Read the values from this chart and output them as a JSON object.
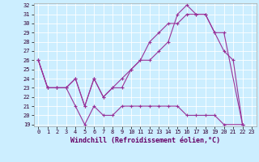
{
  "xlabel": "Windchill (Refroidissement éolien,°C)",
  "bg_color": "#cceeff",
  "line_color": "#993399",
  "xlim_min": -0.5,
  "xlim_max": 23.5,
  "ylim_min": 18.8,
  "ylim_max": 32.2,
  "yticks": [
    19,
    20,
    21,
    22,
    23,
    24,
    25,
    26,
    27,
    28,
    29,
    30,
    31,
    32
  ],
  "xticks": [
    0,
    1,
    2,
    3,
    4,
    5,
    6,
    7,
    8,
    9,
    10,
    11,
    12,
    13,
    14,
    15,
    16,
    17,
    18,
    19,
    20,
    21,
    22,
    23
  ],
  "line1_x": [
    0,
    1,
    2,
    3,
    4,
    5,
    6,
    7,
    8,
    9,
    10,
    11,
    12,
    13,
    14,
    15,
    16,
    17,
    18,
    19,
    20,
    21,
    22
  ],
  "line1_y": [
    26,
    23,
    23,
    23,
    24,
    21,
    24,
    22,
    23,
    23,
    25,
    26,
    26,
    27,
    28,
    31,
    32,
    31,
    31,
    29,
    27,
    26,
    19
  ],
  "line2_x": [
    0,
    1,
    2,
    3,
    4,
    5,
    6,
    7,
    8,
    9,
    10,
    11,
    12,
    13,
    14,
    15,
    16,
    17,
    18,
    19,
    20,
    22
  ],
  "line2_y": [
    26,
    23,
    23,
    23,
    24,
    21,
    24,
    22,
    23,
    24,
    25,
    26,
    28,
    29,
    30,
    30,
    31,
    31,
    31,
    29,
    29,
    19
  ],
  "line3_x": [
    0,
    1,
    2,
    3,
    4,
    5,
    6,
    7,
    8,
    9,
    10,
    11,
    12,
    13,
    14,
    15,
    16,
    17,
    18,
    19,
    20,
    22
  ],
  "line3_y": [
    26,
    23,
    23,
    23,
    21,
    19,
    21,
    20,
    20,
    21,
    21,
    21,
    21,
    21,
    21,
    21,
    20,
    20,
    20,
    20,
    19,
    19
  ],
  "xlabel_color": "#660066",
  "xlabel_fontsize": 6,
  "tick_fontsize": 5,
  "grid_color": "#ffffff",
  "spine_color": "#aaaaaa",
  "marker": "+",
  "markersize": 3,
  "linewidth": 0.8
}
